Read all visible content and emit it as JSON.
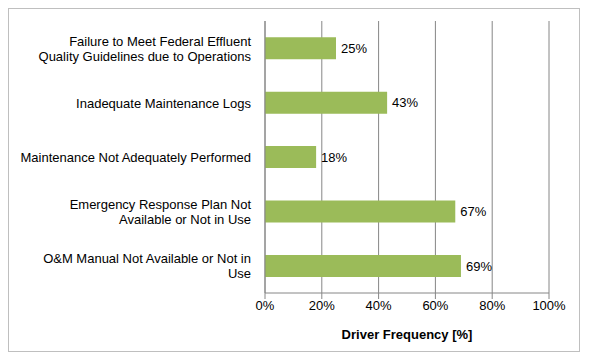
{
  "chart_data": {
    "type": "bar",
    "orientation": "horizontal",
    "categories": [
      "Failure to Meet Federal Effluent Quality Guidelines due to Operations",
      "Inadequate Maintenance Logs",
      "Maintenance Not Adequately Performed",
      "Emergency Response Plan Not Available or Not in Use",
      "O&M Manual Not Available or Not in Use"
    ],
    "values": [
      25,
      43,
      18,
      67,
      69
    ],
    "value_labels": [
      "25%",
      "43%",
      "18%",
      "67%",
      "69%"
    ],
    "data_labels": true,
    "color": "#9bbb59",
    "x_label": "Driver Frequency [%]",
    "xlim": [
      0,
      100
    ],
    "xticks": [
      {
        "value": 0,
        "label": "0%"
      },
      {
        "value": 20,
        "label": "20%"
      },
      {
        "value": 40,
        "label": "40%"
      },
      {
        "value": 60,
        "label": "60%"
      },
      {
        "value": 80,
        "label": "80%"
      },
      {
        "value": 100,
        "label": "100%"
      }
    ],
    "grid": true
  }
}
